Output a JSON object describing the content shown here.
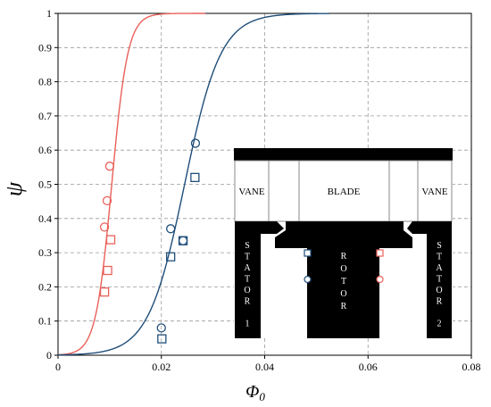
{
  "chart_data": {
    "type": "scatter",
    "title": "",
    "xlabel": "Φ",
    "xlabel_sub": "0",
    "ylabel": "ψ",
    "xlim": [
      0,
      0.08
    ],
    "ylim": [
      0,
      1
    ],
    "xticks": [
      "0",
      "0.02",
      "0.04",
      "0.06",
      "0.08"
    ],
    "yticks": [
      "0",
      "0.1",
      "0.2",
      "0.3",
      "0.4",
      "0.5",
      "0.6",
      "0.7",
      "0.8",
      "0.9",
      "1"
    ],
    "grid": true,
    "colors": {
      "red": "#e8605a",
      "blue": "#1f4e79"
    },
    "series": [
      {
        "color": "#e8605a",
        "kind": "curve",
        "center": 0.0104,
        "width": 0.00155,
        "x_range": [
          0,
          0.0285
        ]
      },
      {
        "color": "#1f4e79",
        "kind": "curve",
        "center": 0.0245,
        "width": 0.0035,
        "x_range": [
          0,
          0.0525
        ]
      },
      {
        "color": "#e8605a",
        "kind": "circles",
        "points": [
          [
            0.009,
            0.375
          ],
          [
            0.0095,
            0.452
          ],
          [
            0.01,
            0.553
          ]
        ]
      },
      {
        "color": "#e8605a",
        "kind": "squares",
        "points": [
          [
            0.009,
            0.185
          ],
          [
            0.0096,
            0.248
          ],
          [
            0.0102,
            0.338
          ]
        ]
      },
      {
        "color": "#1f4e79",
        "kind": "circles",
        "points": [
          [
            0.02,
            0.08
          ],
          [
            0.0218,
            0.37
          ],
          [
            0.0242,
            0.335
          ],
          [
            0.0266,
            0.62
          ]
        ]
      },
      {
        "color": "#1f4e79",
        "kind": "squares",
        "points": [
          [
            0.0201,
            0.048
          ],
          [
            0.0218,
            0.288
          ],
          [
            0.0242,
            0.335
          ],
          [
            0.0265,
            0.52
          ]
        ]
      }
    ]
  },
  "inset": {
    "vane_left": "VANE",
    "blade": "BLADE",
    "vane_right": "VANE",
    "stator_left": [
      "S",
      "T",
      "A",
      "T",
      "O",
      "R",
      "",
      "1"
    ],
    "rotor": [
      "R",
      "O",
      "T",
      "O",
      "R"
    ],
    "stator_right": [
      "S",
      "T",
      "A",
      "T",
      "O",
      "R",
      "",
      "2"
    ]
  }
}
